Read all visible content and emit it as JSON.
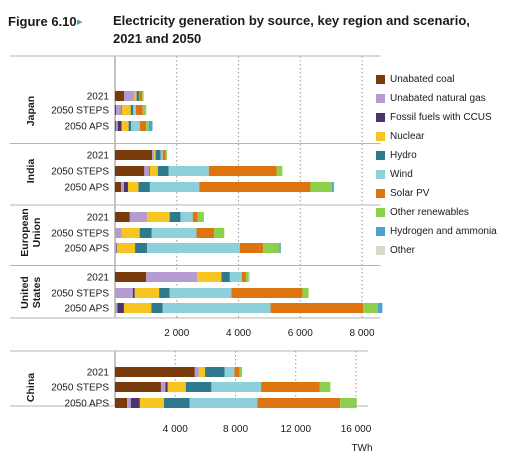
{
  "figure": {
    "number": "Figure 6.10",
    "arrow": "▸",
    "title": "Electricity generation by source, key region and scenario, 2021 and 2050"
  },
  "chart_data": {
    "type": "bar",
    "orientation": "horizontal",
    "stacked": true,
    "unit_label": "TWh",
    "legend_position": "right",
    "grid": "vertical-dotted",
    "sources": [
      {
        "name": "Unabated coal",
        "color": "#7a3b0c"
      },
      {
        "name": "Unabated natural gas",
        "color": "#b69bd0"
      },
      {
        "name": "Fossil fuels with CCUS",
        "color": "#4a3470"
      },
      {
        "name": "Nuclear",
        "color": "#f7c51e"
      },
      {
        "name": "Hydro",
        "color": "#2d7a8e"
      },
      {
        "name": "Wind",
        "color": "#8ecfdc"
      },
      {
        "name": "Solar PV",
        "color": "#dd7410"
      },
      {
        "name": "Other renewables",
        "color": "#8cd04c"
      },
      {
        "name": "Hydrogen and ammonia",
        "color": "#4ea2cf"
      },
      {
        "name": "Other",
        "color": "#d8d9cb"
      }
    ],
    "panels": [
      {
        "axis": {
          "min": 0,
          "max": 8600,
          "ticks": [
            2000,
            4000,
            6000,
            8000
          ],
          "tick_labels": [
            "2 000",
            "4 000",
            "6 000",
            "8 000"
          ]
        },
        "regions": [
          {
            "name": "Japan",
            "bars": [
              {
                "label": "2021",
                "values": [
                  300,
                  330,
                  0,
                  70,
                  80,
                  10,
                  90,
                  40,
                  0,
                  20
                ]
              },
              {
                "label": "2050 STEPS",
                "values": [
                  40,
                  160,
                  20,
                  290,
                  80,
                  90,
                  220,
                  80,
                  20,
                  20
                ]
              },
              {
                "label": "2050 APS",
                "values": [
                  30,
                  60,
                  120,
                  230,
                  80,
                  290,
                  200,
                  80,
                  120,
                  20
                ]
              }
            ]
          },
          {
            "name": "India",
            "bars": [
              {
                "label": "2021",
                "values": [
                  1200,
                  70,
                  0,
                  45,
                  160,
                  70,
                  95,
                  40,
                  0,
                  0
                ]
              },
              {
                "label": "2050 STEPS",
                "values": [
                  950,
                  150,
                  20,
                  270,
                  350,
                  1300,
                  2200,
                  180,
                  0,
                  0
                ]
              },
              {
                "label": "2050 APS",
                "values": [
                  200,
                  90,
                  130,
                  340,
                  370,
                  1600,
                  3600,
                  700,
                  60,
                  0
                ]
              }
            ]
          },
          {
            "name": "European Union",
            "bars": [
              {
                "label": "2021",
                "values": [
                  480,
                  560,
                  0,
                  730,
                  350,
                  400,
                  160,
                  200,
                  0,
                  0
                ]
              },
              {
                "label": "2050 STEPS",
                "values": [
                  0,
                  220,
                  0,
                  580,
                  390,
                  1450,
                  570,
                  330,
                  0,
                  0
                ]
              },
              {
                "label": "2050 APS",
                "values": [
                  0,
                  50,
                  20,
                  580,
                  390,
                  3000,
                  760,
                  520,
                  50,
                  0
                ]
              }
            ]
          },
          {
            "name": "United States",
            "bars": [
              {
                "label": "2021",
                "values": [
                  1010,
                  1650,
                  0,
                  790,
                  270,
                  390,
                  130,
                  90,
                  0,
                  40
                ]
              },
              {
                "label": "2050 STEPS",
                "values": [
                  0,
                  580,
                  60,
                  790,
                  340,
                  2000,
                  2300,
                  200,
                  0,
                  0
                ]
              },
              {
                "label": "2050 APS",
                "values": [
                  0,
                  80,
                  210,
                  890,
                  360,
                  3500,
                  3000,
                  470,
                  150,
                  0
                ]
              }
            ]
          }
        ]
      },
      {
        "axis": {
          "min": 0,
          "max": 16800,
          "ticks": [
            4000,
            8000,
            12000,
            16000
          ],
          "tick_labels": [
            "4 000",
            "8 000",
            "12 000",
            "16 000"
          ]
        },
        "regions": [
          {
            "name": "China",
            "bars": [
              {
                "label": "2021",
                "values": [
                  5300,
                  270,
                  0,
                  410,
                  1300,
                  650,
                  330,
                  170,
                  0,
                  0
                ]
              },
              {
                "label": "2050 STEPS",
                "values": [
                  3050,
                  300,
                  150,
                  1200,
                  1700,
                  3300,
                  3900,
                  700,
                  0,
                  0
                ]
              },
              {
                "label": "2050 APS",
                "values": [
                  800,
                  250,
                  600,
                  1600,
                  1700,
                  4500,
                  5500,
                  1100,
                  0,
                  0
                ]
              }
            ]
          }
        ]
      }
    ]
  }
}
